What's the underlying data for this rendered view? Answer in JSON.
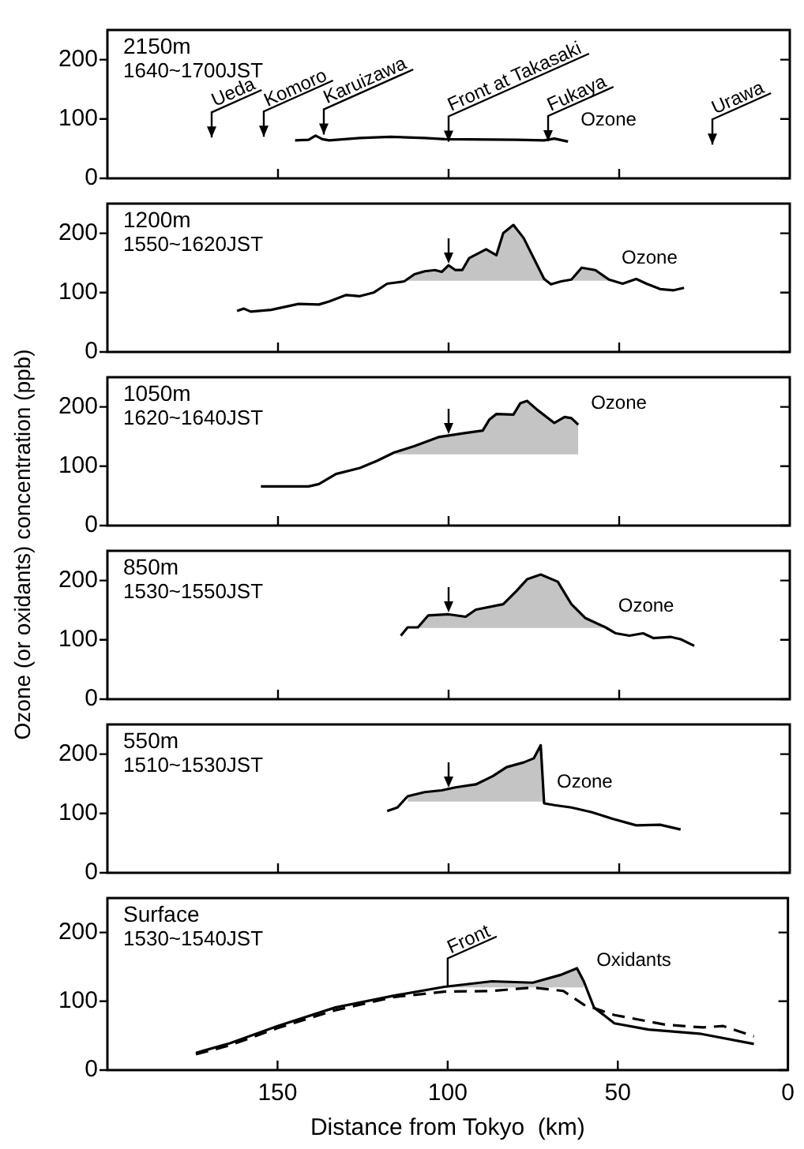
{
  "chart_data": [
    {
      "type": "line",
      "title": "2150m",
      "subtitle": "1640~1700JST",
      "xlim": [
        200,
        0
      ],
      "xticks": [
        150,
        100,
        50,
        0
      ],
      "ylim": [
        0,
        250
      ],
      "yticks": [
        0,
        100,
        200
      ],
      "tick_labels": "y",
      "grid": false,
      "legend": false,
      "series": [
        {
          "name": "Ozone",
          "color": "#000000",
          "x": [
            145,
            141,
            139,
            137,
            135,
            126,
            117,
            107,
            101,
            80,
            72,
            69,
            65
          ],
          "values": [
            64,
            65,
            72,
            66,
            64,
            68,
            70,
            68,
            66,
            65,
            64,
            67,
            62
          ]
        }
      ],
      "annotations": [
        "Ueda",
        "Komoro",
        "Karuizawa",
        "Front at Takasaki",
        "Fukaya",
        "Urawa"
      ]
    },
    {
      "type": "line",
      "title": "1200m",
      "subtitle": "1550~1620JST",
      "xlim": [
        200,
        0
      ],
      "xticks": [
        150,
        100,
        50,
        0
      ],
      "ylim": [
        0,
        250
      ],
      "yticks": [
        0,
        100,
        200
      ],
      "tick_labels": "y",
      "grid": false,
      "legend": false,
      "series": [
        {
          "name": "Ozone",
          "color": "#000000",
          "x": [
            162,
            160,
            158,
            152,
            144,
            138,
            135,
            130,
            126,
            122,
            118,
            113,
            110,
            107,
            104,
            102,
            100,
            98,
            96,
            94,
            89,
            86,
            84,
            81,
            78,
            72,
            70,
            67,
            64,
            61,
            57,
            53,
            49,
            45,
            42,
            38,
            34,
            31
          ],
          "values": [
            69,
            73,
            68,
            71,
            81,
            80,
            85,
            96,
            94,
            100,
            115,
            119,
            131,
            136,
            138,
            135,
            146,
            138,
            138,
            158,
            173,
            163,
            200,
            214,
            192,
            123,
            114,
            119,
            122,
            142,
            138,
            122,
            115,
            123,
            115,
            106,
            104,
            108
          ],
          "lower": [
            null,
            null,
            null,
            null,
            null,
            null,
            null,
            null,
            null,
            null,
            null,
            120,
            120,
            120,
            120,
            120,
            120,
            120,
            120,
            120,
            120,
            120,
            120,
            120,
            120,
            120,
            null,
            null,
            120,
            120,
            120,
            120,
            null,
            null,
            null,
            null,
            null,
            null
          ],
          "upper": [
            null,
            null,
            null,
            null,
            null,
            null,
            null,
            null,
            null,
            null,
            null,
            120,
            131,
            136,
            138,
            135,
            146,
            138,
            138,
            158,
            173,
            163,
            200,
            214,
            192,
            120,
            null,
            null,
            120,
            142,
            138,
            120,
            null,
            null,
            null,
            null,
            null,
            null
          ]
        }
      ]
    },
    {
      "type": "line",
      "title": "1050m",
      "subtitle": "1620~1640JST",
      "xlim": [
        200,
        0
      ],
      "xticks": [
        150,
        100,
        50,
        0
      ],
      "ylim": [
        0,
        250
      ],
      "yticks": [
        0,
        100,
        200
      ],
      "tick_labels": "y",
      "grid": false,
      "legend": false,
      "series": [
        {
          "name": "Ozone",
          "color": "#000000",
          "x": [
            155,
            141,
            138,
            133,
            126,
            121,
            116,
            110,
            103,
            95,
            90,
            88,
            86,
            81,
            79,
            77,
            74,
            69,
            66,
            64,
            62
          ],
          "values": [
            66,
            66,
            70,
            87,
            97,
            109,
            123,
            134,
            149,
            156,
            160,
            179,
            188,
            187,
            206,
            210,
            195,
            173,
            183,
            181,
            170
          ],
          "lower": [
            null,
            null,
            null,
            null,
            null,
            null,
            120,
            120,
            120,
            120,
            120,
            120,
            120,
            120,
            120,
            120,
            120,
            120,
            120,
            120,
            120
          ],
          "upper": [
            null,
            null,
            null,
            null,
            null,
            null,
            120,
            134,
            149,
            156,
            160,
            179,
            188,
            187,
            206,
            210,
            195,
            173,
            183,
            181,
            170
          ]
        }
      ]
    },
    {
      "type": "line",
      "title": "850m",
      "subtitle": "1530~1550JST",
      "ylabel": "Ozone (or oxidants) concentration (ppb)",
      "xlim": [
        200,
        0
      ],
      "xticks": [
        150,
        100,
        50,
        0
      ],
      "ylim": [
        0,
        250
      ],
      "yticks": [
        0,
        100,
        200
      ],
      "tick_labels": "y",
      "grid": false,
      "legend": false,
      "series": [
        {
          "name": "Ozone",
          "color": "#000000",
          "x": [
            114,
            112,
            109,
            106,
            100,
            95,
            92,
            84,
            80,
            77,
            73,
            68,
            64,
            60,
            54,
            51,
            47,
            43,
            40,
            35,
            32,
            28
          ],
          "values": [
            107,
            121,
            121,
            141,
            143,
            139,
            151,
            160,
            183,
            202,
            210,
            198,
            160,
            137,
            121,
            111,
            107,
            111,
            103,
            105,
            101,
            90
          ],
          "lower": [
            null,
            120,
            120,
            120,
            120,
            120,
            120,
            120,
            120,
            120,
            120,
            120,
            120,
            120,
            120,
            null,
            null,
            null,
            null,
            null,
            null,
            null
          ],
          "upper": [
            null,
            120,
            121,
            141,
            143,
            139,
            151,
            160,
            183,
            202,
            210,
            198,
            160,
            137,
            120,
            null,
            null,
            null,
            null,
            null,
            null,
            null
          ]
        }
      ]
    },
    {
      "type": "line",
      "title": "550m",
      "subtitle": "1510~1530JST",
      "xlim": [
        200,
        0
      ],
      "xticks": [
        150,
        100,
        50,
        0
      ],
      "ylim": [
        0,
        250
      ],
      "yticks": [
        0,
        100,
        200
      ],
      "tick_labels": "y",
      "grid": false,
      "legend": false,
      "series": [
        {
          "name": "Ozone",
          "color": "#000000",
          "x": [
            118,
            115,
            112,
            107,
            102,
            98,
            92,
            87,
            83,
            78,
            75,
            73,
            72,
            69,
            64,
            58,
            52,
            45,
            38,
            32
          ],
          "values": [
            104,
            110,
            129,
            136,
            139,
            144,
            149,
            163,
            178,
            186,
            193,
            215,
            117,
            114,
            110,
            102,
            91,
            80,
            81,
            73
          ],
          "lower": [
            null,
            null,
            120,
            120,
            120,
            120,
            120,
            120,
            120,
            120,
            120,
            120,
            120,
            null,
            null,
            null,
            null,
            null,
            null,
            null
          ],
          "upper": [
            null,
            null,
            129,
            136,
            139,
            144,
            149,
            163,
            178,
            186,
            193,
            215,
            120,
            null,
            null,
            null,
            null,
            null,
            null,
            null
          ]
        }
      ]
    },
    {
      "type": "line",
      "title": "Surface",
      "subtitle": "1530~1540JST",
      "xlabel": "Distance from Tokyo  (km)",
      "xlim": [
        200,
        0
      ],
      "xticks": [
        150,
        100,
        50,
        0
      ],
      "ylim": [
        0,
        250
      ],
      "yticks": [
        0,
        100,
        200
      ],
      "grid": false,
      "legend": false,
      "series": [
        {
          "name": "Oxidants",
          "color": "#000000",
          "x": [
            174,
            164,
            150,
            133,
            116,
            101,
            87,
            75,
            67,
            62,
            60,
            57,
            51,
            41,
            26,
            10
          ],
          "values": [
            25,
            39,
            64,
            91,
            108,
            121,
            129,
            127,
            138,
            148,
            129,
            91,
            68,
            59,
            53,
            38
          ],
          "lower": [
            null,
            null,
            null,
            null,
            null,
            120,
            120,
            120,
            120,
            120,
            120,
            null,
            null,
            null,
            null,
            null
          ],
          "upper": [
            null,
            null,
            null,
            null,
            null,
            121,
            129,
            127,
            138,
            148,
            129,
            null,
            null,
            null,
            null,
            null
          ]
        },
        {
          "color": "#000000",
          "line_style": "dashed",
          "x": [
            174,
            164,
            150,
            133,
            116,
            101,
            87,
            75,
            66,
            60,
            51,
            36,
            25,
            19,
            10
          ],
          "values": [
            23,
            36,
            61,
            87,
            106,
            114,
            115,
            120,
            115,
            95,
            80,
            66,
            62,
            64,
            49
          ]
        }
      ],
      "annotations": [
        {
          "text": "Front",
          "x": 100,
          "y": 121
        }
      ]
    }
  ]
}
